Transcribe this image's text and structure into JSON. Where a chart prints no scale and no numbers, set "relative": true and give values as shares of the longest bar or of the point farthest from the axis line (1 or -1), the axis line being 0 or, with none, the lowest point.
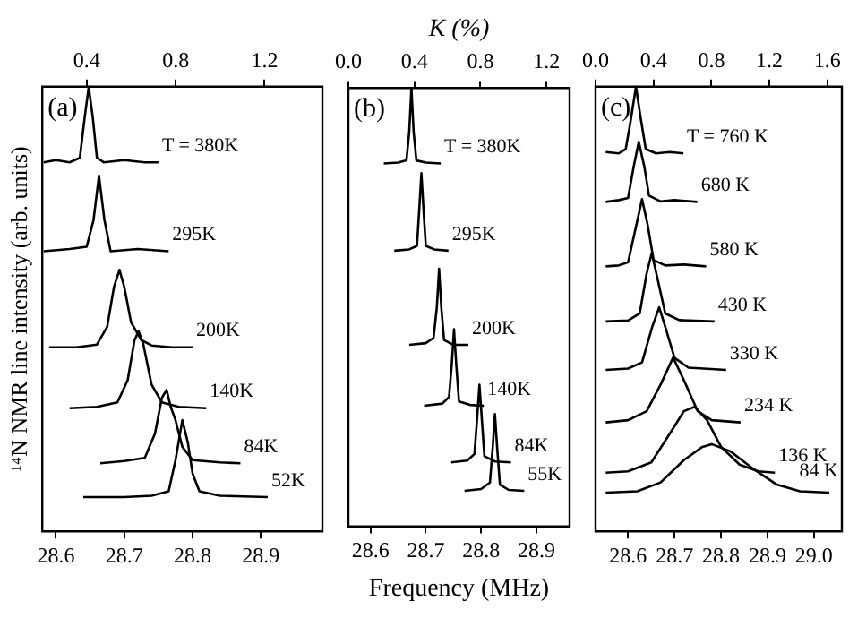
{
  "chart_data": [
    {
      "type": "line",
      "relative": true,
      "legend": false,
      "grid": false,
      "ylabel": "¹⁴N NMR line intensity (arb. units)",
      "xlim": [
        28.58,
        28.99
      ],
      "xticks": [
        28.6,
        28.7,
        28.8,
        28.9
      ],
      "x2lim": [
        0.2,
        1.46
      ],
      "x2ticks": [
        0.4,
        0.8,
        1.2
      ],
      "series": [
        {
          "name": "T = 380K",
          "color": "#000000",
          "x": [
            28.582,
            28.6,
            28.62,
            28.635,
            28.642,
            28.648,
            28.654,
            28.66,
            28.67,
            28.7,
            28.73,
            28.75
          ],
          "values": [
            0.83,
            0.835,
            0.83,
            0.84,
            0.93,
            1.0,
            0.93,
            0.84,
            0.83,
            0.835,
            0.83,
            0.83
          ]
        },
        {
          "name": "295K",
          "color": "#000000",
          "x": [
            28.582,
            28.62,
            28.645,
            28.655,
            28.663,
            28.671,
            28.68,
            28.72,
            28.765
          ],
          "values": [
            0.63,
            0.635,
            0.64,
            0.7,
            0.8,
            0.7,
            0.63,
            0.635,
            0.63
          ]
        },
        {
          "name": "200K",
          "color": "#000000",
          "x": [
            28.59,
            28.63,
            28.66,
            28.675,
            28.685,
            28.693,
            28.7,
            28.71,
            28.725,
            28.74,
            28.77,
            28.8
          ],
          "values": [
            0.414,
            0.414,
            0.42,
            0.46,
            0.55,
            0.588,
            0.55,
            0.47,
            0.43,
            0.418,
            0.414,
            0.414
          ]
        },
        {
          "name": "140K",
          "color": "#000000",
          "x": [
            28.62,
            28.66,
            28.69,
            28.705,
            28.715,
            28.721,
            28.728,
            28.74,
            28.755,
            28.78,
            28.82
          ],
          "values": [
            0.277,
            0.28,
            0.29,
            0.34,
            0.43,
            0.45,
            0.42,
            0.33,
            0.29,
            0.28,
            0.277
          ]
        },
        {
          "name": "84K",
          "color": "#000000",
          "x": [
            28.665,
            28.7,
            28.73,
            28.745,
            28.755,
            28.762,
            28.768,
            28.775,
            28.785,
            28.8,
            28.84,
            28.87
          ],
          "values": [
            0.153,
            0.158,
            0.165,
            0.22,
            0.3,
            0.318,
            0.28,
            0.25,
            0.19,
            0.16,
            0.155,
            0.153
          ]
        },
        {
          "name": "52K",
          "color": "#000000",
          "x": [
            28.64,
            28.7,
            28.74,
            28.765,
            28.775,
            28.785,
            28.793,
            28.8,
            28.81,
            28.84,
            28.91
          ],
          "values": [
            0.077,
            0.077,
            0.08,
            0.09,
            0.16,
            0.25,
            0.2,
            0.13,
            0.09,
            0.08,
            0.077
          ]
        }
      ],
      "annotations": [
        "(a)"
      ]
    },
    {
      "type": "line",
      "relative": true,
      "legend": false,
      "grid": false,
      "xlabel": "Frequency (MHz)",
      "x2label": "K (%)",
      "xlim": [
        28.56,
        28.96
      ],
      "xticks": [
        28.6,
        28.7,
        28.8,
        28.9
      ],
      "x2lim": [
        0,
        1.34
      ],
      "x2ticks": [
        {
          "value": 0,
          "label": "0.0"
        },
        0.4,
        0.8,
        1.2
      ],
      "series": [
        {
          "name": "T = 380K",
          "color": "#000000",
          "x": [
            28.624,
            28.65,
            28.665,
            28.67,
            28.674,
            28.678,
            28.683,
            28.7,
            28.727
          ],
          "values": [
            0.828,
            0.83,
            0.835,
            0.9,
            1.0,
            0.9,
            0.835,
            0.83,
            0.828
          ]
        },
        {
          "name": "295K",
          "color": "#000000",
          "x": [
            28.643,
            28.67,
            28.684,
            28.688,
            28.692,
            28.696,
            28.7,
            28.715,
            28.741
          ],
          "values": [
            0.629,
            0.632,
            0.64,
            0.72,
            0.806,
            0.72,
            0.64,
            0.632,
            0.629
          ]
        },
        {
          "name": "200K",
          "color": "#000000",
          "x": [
            28.67,
            28.7,
            28.714,
            28.72,
            28.724,
            28.728,
            28.733,
            28.75,
            28.777
          ],
          "values": [
            0.414,
            0.418,
            0.43,
            0.5,
            0.588,
            0.5,
            0.425,
            0.414,
            0.414
          ]
        },
        {
          "name": "140K",
          "color": "#000000",
          "x": [
            28.697,
            28.73,
            28.742,
            28.747,
            28.751,
            28.755,
            28.76,
            28.78,
            28.805
          ],
          "values": [
            0.275,
            0.28,
            0.295,
            0.37,
            0.45,
            0.37,
            0.285,
            0.277,
            0.275
          ]
        },
        {
          "name": "84K",
          "color": "#000000",
          "x": [
            28.746,
            28.775,
            28.788,
            28.793,
            28.797,
            28.801,
            28.806,
            28.825,
            28.854
          ],
          "values": [
            0.146,
            0.15,
            0.165,
            0.25,
            0.323,
            0.25,
            0.16,
            0.148,
            0.146
          ]
        },
        {
          "name": "55K",
          "color": "#000000",
          "x": [
            28.77,
            28.8,
            28.816,
            28.821,
            28.825,
            28.829,
            28.834,
            28.85,
            28.878
          ],
          "values": [
            0.081,
            0.085,
            0.1,
            0.18,
            0.256,
            0.18,
            0.095,
            0.083,
            0.081
          ]
        }
      ],
      "annotations": [
        "(b)"
      ]
    },
    {
      "type": "line",
      "relative": true,
      "legend": false,
      "grid": false,
      "xlim": [
        28.53,
        29.06
      ],
      "xticks": [
        28.6,
        28.7,
        28.8,
        28.9,
        {
          "value": 29,
          "label": "29.0"
        }
      ],
      "x2lim": [
        0,
        1.7
      ],
      "x2ticks": [
        {
          "value": 0,
          "label": "0.0"
        },
        0.4,
        0.8,
        1.2,
        1.6
      ],
      "series": [
        {
          "name": "T = 760 K",
          "color": "#000000",
          "x": [
            28.552,
            28.58,
            28.595,
            28.605,
            28.617,
            28.627,
            28.638,
            28.66,
            28.69,
            28.719
          ],
          "values": [
            0.853,
            0.85,
            0.86,
            0.92,
            1.0,
            0.93,
            0.86,
            0.85,
            0.853,
            0.85
          ]
        },
        {
          "name": "680 K",
          "color": "#000000",
          "x": [
            28.552,
            28.58,
            28.6,
            28.612,
            28.623,
            28.635,
            28.645,
            28.67,
            28.7,
            28.749
          ],
          "values": [
            0.741,
            0.745,
            0.75,
            0.82,
            0.876,
            0.82,
            0.755,
            0.742,
            0.745,
            0.741
          ]
        },
        {
          "name": "580 K",
          "color": "#000000",
          "x": [
            28.552,
            28.58,
            28.6,
            28.618,
            28.63,
            28.642,
            28.655,
            28.68,
            28.72,
            28.768
          ],
          "values": [
            0.596,
            0.598,
            0.605,
            0.69,
            0.747,
            0.69,
            0.61,
            0.598,
            0.6,
            0.596
          ]
        },
        {
          "name": "430 K",
          "color": "#000000",
          "x": [
            28.552,
            28.6,
            28.625,
            28.64,
            28.651,
            28.663,
            28.68,
            28.71,
            28.786
          ],
          "values": [
            0.472,
            0.474,
            0.49,
            0.58,
            0.626,
            0.57,
            0.49,
            0.475,
            0.472
          ]
        },
        {
          "name": "330 K",
          "color": "#000000",
          "x": [
            28.552,
            28.6,
            28.63,
            28.652,
            28.667,
            28.68,
            28.7,
            28.73,
            28.811
          ],
          "values": [
            0.363,
            0.366,
            0.38,
            0.46,
            0.504,
            0.46,
            0.39,
            0.368,
            0.363
          ]
        },
        {
          "name": "234 K",
          "color": "#000000",
          "x": [
            28.552,
            28.6,
            28.64,
            28.67,
            28.697,
            28.72,
            28.75,
            28.78,
            28.842
          ],
          "values": [
            0.245,
            0.25,
            0.27,
            0.33,
            0.391,
            0.34,
            0.27,
            0.25,
            0.245
          ]
        },
        {
          "name": "136 K",
          "color": "#000000",
          "x": [
            28.552,
            28.6,
            28.65,
            28.69,
            28.72,
            28.743,
            28.77,
            28.8,
            28.84,
            28.88,
            28.916
          ],
          "values": [
            0.132,
            0.135,
            0.155,
            0.22,
            0.27,
            0.28,
            0.25,
            0.19,
            0.15,
            0.135,
            0.132
          ]
        },
        {
          "name": "84 K",
          "color": "#000000",
          "x": [
            28.552,
            28.62,
            28.67,
            28.72,
            28.76,
            28.78,
            28.82,
            28.87,
            28.92,
            28.97,
            29.033
          ],
          "values": [
            0.087,
            0.09,
            0.11,
            0.16,
            0.19,
            0.196,
            0.18,
            0.14,
            0.105,
            0.09,
            0.087
          ]
        }
      ],
      "annotations": [
        "(c)"
      ]
    }
  ]
}
